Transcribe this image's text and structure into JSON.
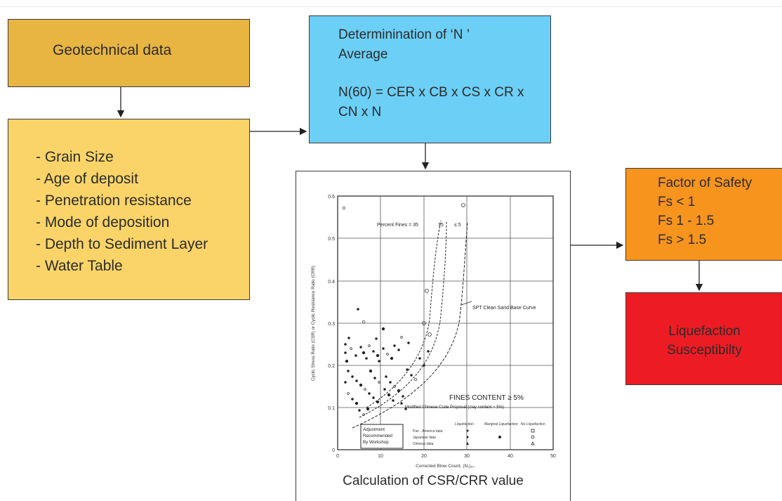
{
  "geo": {
    "title": "Geotechnical data"
  },
  "params": {
    "items": [
      "- Grain Size",
      "- Age of deposit",
      "- Penetration resistance",
      "- Mode of deposition",
      "- Depth to Sediment Layer",
      "- Water Table"
    ]
  },
  "n_box": {
    "line1": "Determinination of ‘N ’",
    "line2": "Average",
    "line3": "N(60) = CER x CB x CS x  CR x",
    "line4": "CN  x N"
  },
  "chart": {
    "caption": "Calculation of CSR/CRR value",
    "ylabel": "Cyclic Stress Ratio (CSR) or Cyclic Resistance Ratio (CRR)",
    "xlabel": "Corrected Blow Count, (N₁)₆₀",
    "y_ticks": [
      "0.6",
      "0.5",
      "0.4",
      "0.3",
      "0.2",
      "0.1",
      "0"
    ],
    "x_ticks": [
      "0",
      "10",
      "20",
      "30",
      "40",
      "50"
    ],
    "fines_label": "Percent Fines = 35",
    "fines_15": "15",
    "fines_5": "≤ 5",
    "spt_label": "SPT Clean Sand Base Curve",
    "fines_content": "FINES CONTENT ≥ 5%",
    "modified_chinese": "Modified Chinese Code Proposal (clay content = 5%)",
    "adjustment": [
      "Adjustment",
      "Recommended",
      "By Workshop"
    ],
    "legend_headers": [
      "Liquefaction",
      "Marginal Liquefaction",
      "No Liquefaction"
    ],
    "legend_rows": [
      "Pan - America data",
      "Japanese data",
      "Chinese data"
    ]
  },
  "fos": {
    "title": "Factor of Safety",
    "rows": [
      "Fs < 1",
      "Fs 1 - 1.5",
      "Fs > 1.5"
    ]
  },
  "liq": {
    "line1": "Liquefaction",
    "line2": "Susceptibilty"
  },
  "colors": {
    "geo": "#e8b542",
    "params": "#fad468",
    "n_box": "#6ccff6",
    "fos": "#f7941d",
    "liq": "#ed1c24"
  }
}
